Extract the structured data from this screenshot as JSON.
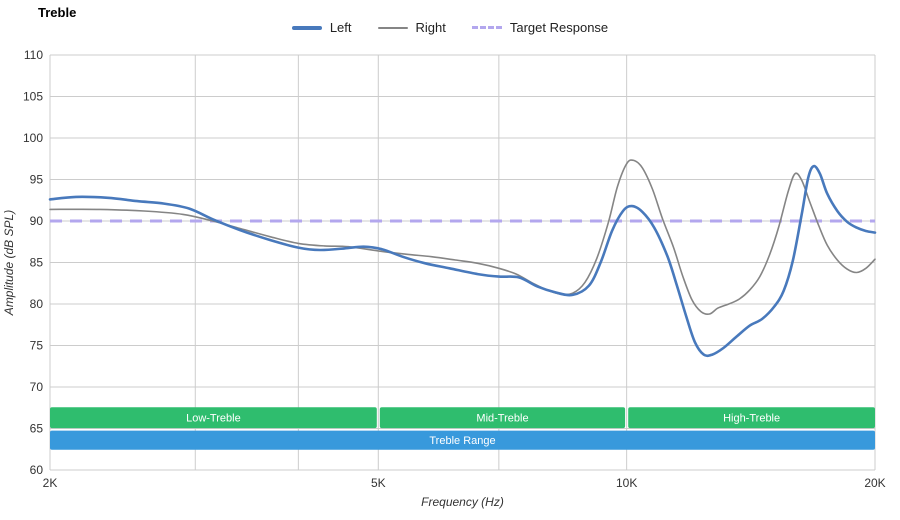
{
  "title": "Treble",
  "colors": {
    "background": "#ffffff",
    "grid": "#cccccc",
    "tick_label": "#333333",
    "axis_title": "#333333",
    "band_text": "#ffffff"
  },
  "legend": {
    "items": [
      {
        "label": "Left",
        "color": "#4879bc",
        "style": "solid",
        "thickness": 4
      },
      {
        "label": "Right",
        "color": "#858585",
        "style": "solid",
        "thickness": 2
      },
      {
        "label": "Target Response",
        "color": "#b3a7ee",
        "style": "dashed",
        "thickness": 3
      }
    ]
  },
  "chart_data": {
    "type": "line",
    "title": "Treble",
    "xlabel": "Frequency (Hz)",
    "ylabel": "Amplitude (dB SPL)",
    "x_scale": "log",
    "xlim": [
      2000,
      20000
    ],
    "ylim": [
      60,
      110
    ],
    "grid": true,
    "legend_position": "top-center",
    "y_ticks": [
      110,
      105,
      100,
      95,
      90,
      85,
      80,
      75,
      70,
      65,
      60
    ],
    "x_ticks": [
      {
        "f": 2000,
        "label": "2K"
      },
      {
        "f": 5000,
        "label": "5K"
      },
      {
        "f": 10000,
        "label": "10K"
      },
      {
        "f": 20000,
        "label": "20K"
      }
    ],
    "x_gridlines": [
      2000,
      3000,
      4000,
      5000,
      7000,
      10000,
      20000
    ],
    "target_response": {
      "label": "Target Response",
      "value": 90,
      "color": "#b3a7ee"
    },
    "series": [
      {
        "name": "Left",
        "color": "#4879bc",
        "width": 2.6,
        "points": [
          [
            2000,
            92.6
          ],
          [
            2150,
            92.9
          ],
          [
            2350,
            92.8
          ],
          [
            2550,
            92.4
          ],
          [
            2750,
            92.1
          ],
          [
            2950,
            91.5
          ],
          [
            3150,
            90.2
          ],
          [
            3400,
            88.9
          ],
          [
            3700,
            87.7
          ],
          [
            4000,
            86.8
          ],
          [
            4250,
            86.5
          ],
          [
            4550,
            86.7
          ],
          [
            4800,
            86.9
          ],
          [
            5050,
            86.6
          ],
          [
            5350,
            85.7
          ],
          [
            5700,
            84.9
          ],
          [
            6100,
            84.3
          ],
          [
            6600,
            83.6
          ],
          [
            7000,
            83.3
          ],
          [
            7400,
            83.2
          ],
          [
            7800,
            82.1
          ],
          [
            8200,
            81.4
          ],
          [
            8600,
            81.1
          ],
          [
            9000,
            82.2
          ],
          [
            9300,
            85.0
          ],
          [
            9600,
            88.8
          ],
          [
            9900,
            91.2
          ],
          [
            10150,
            91.8
          ],
          [
            10450,
            91.1
          ],
          [
            10800,
            89.2
          ],
          [
            11200,
            85.8
          ],
          [
            11500,
            82.3
          ],
          [
            11800,
            78.6
          ],
          [
            12100,
            75.4
          ],
          [
            12400,
            73.9
          ],
          [
            12700,
            73.9
          ],
          [
            13100,
            74.7
          ],
          [
            13600,
            76.1
          ],
          [
            14100,
            77.4
          ],
          [
            14600,
            78.2
          ],
          [
            15100,
            79.7
          ],
          [
            15500,
            81.6
          ],
          [
            15900,
            85.2
          ],
          [
            16300,
            90.8
          ],
          [
            16600,
            95.2
          ],
          [
            16850,
            96.6
          ],
          [
            17150,
            95.7
          ],
          [
            17500,
            93.3
          ],
          [
            18000,
            91.2
          ],
          [
            18500,
            89.9
          ],
          [
            19000,
            89.2
          ],
          [
            19500,
            88.8
          ],
          [
            20000,
            88.6
          ]
        ]
      },
      {
        "name": "Right",
        "color": "#858585",
        "width": 1.6,
        "points": [
          [
            2000,
            91.4
          ],
          [
            2300,
            91.4
          ],
          [
            2600,
            91.2
          ],
          [
            2900,
            90.8
          ],
          [
            3150,
            90.0
          ],
          [
            3400,
            89.1
          ],
          [
            3700,
            88.1
          ],
          [
            4000,
            87.3
          ],
          [
            4300,
            87.0
          ],
          [
            4600,
            86.9
          ],
          [
            5000,
            86.4
          ],
          [
            5400,
            86.0
          ],
          [
            5800,
            85.7
          ],
          [
            6200,
            85.3
          ],
          [
            6600,
            84.9
          ],
          [
            7000,
            84.3
          ],
          [
            7350,
            83.6
          ],
          [
            7700,
            82.5
          ],
          [
            8000,
            81.7
          ],
          [
            8300,
            81.2
          ],
          [
            8600,
            81.3
          ],
          [
            8900,
            82.6
          ],
          [
            9200,
            85.5
          ],
          [
            9500,
            89.8
          ],
          [
            9750,
            94.2
          ],
          [
            10000,
            96.9
          ],
          [
            10200,
            97.3
          ],
          [
            10450,
            96.4
          ],
          [
            10750,
            93.8
          ],
          [
            11050,
            90.3
          ],
          [
            11400,
            86.8
          ],
          [
            11700,
            83.3
          ],
          [
            12000,
            80.5
          ],
          [
            12300,
            79.1
          ],
          [
            12600,
            78.8
          ],
          [
            12900,
            79.5
          ],
          [
            13300,
            80.0
          ],
          [
            13700,
            80.6
          ],
          [
            14100,
            81.7
          ],
          [
            14500,
            83.3
          ],
          [
            14900,
            85.9
          ],
          [
            15300,
            89.4
          ],
          [
            15700,
            93.6
          ],
          [
            16000,
            95.7
          ],
          [
            16300,
            94.9
          ],
          [
            16700,
            92.1
          ],
          [
            17100,
            89.4
          ],
          [
            17500,
            87.1
          ],
          [
            18000,
            85.3
          ],
          [
            18500,
            84.2
          ],
          [
            19000,
            83.8
          ],
          [
            19500,
            84.3
          ],
          [
            20000,
            85.4
          ]
        ]
      }
    ],
    "bands": [
      {
        "label": "Low-Treble",
        "from": 2000,
        "to": 5000,
        "row": 0,
        "color": "#2fbd6e"
      },
      {
        "label": "Mid-Treble",
        "from": 5000,
        "to": 10000,
        "row": 0,
        "color": "#2fbd6e"
      },
      {
        "label": "High-Treble",
        "from": 10000,
        "to": 20000,
        "row": 0,
        "color": "#2fbd6e"
      },
      {
        "label": "Treble Range",
        "from": 2000,
        "to": 20000,
        "row": 1,
        "color": "#3899dc"
      }
    ],
    "band_rows": [
      {
        "db_top": 67.55,
        "db_bottom": 65.05
      },
      {
        "db_top": 64.75,
        "db_bottom": 62.45
      }
    ]
  }
}
